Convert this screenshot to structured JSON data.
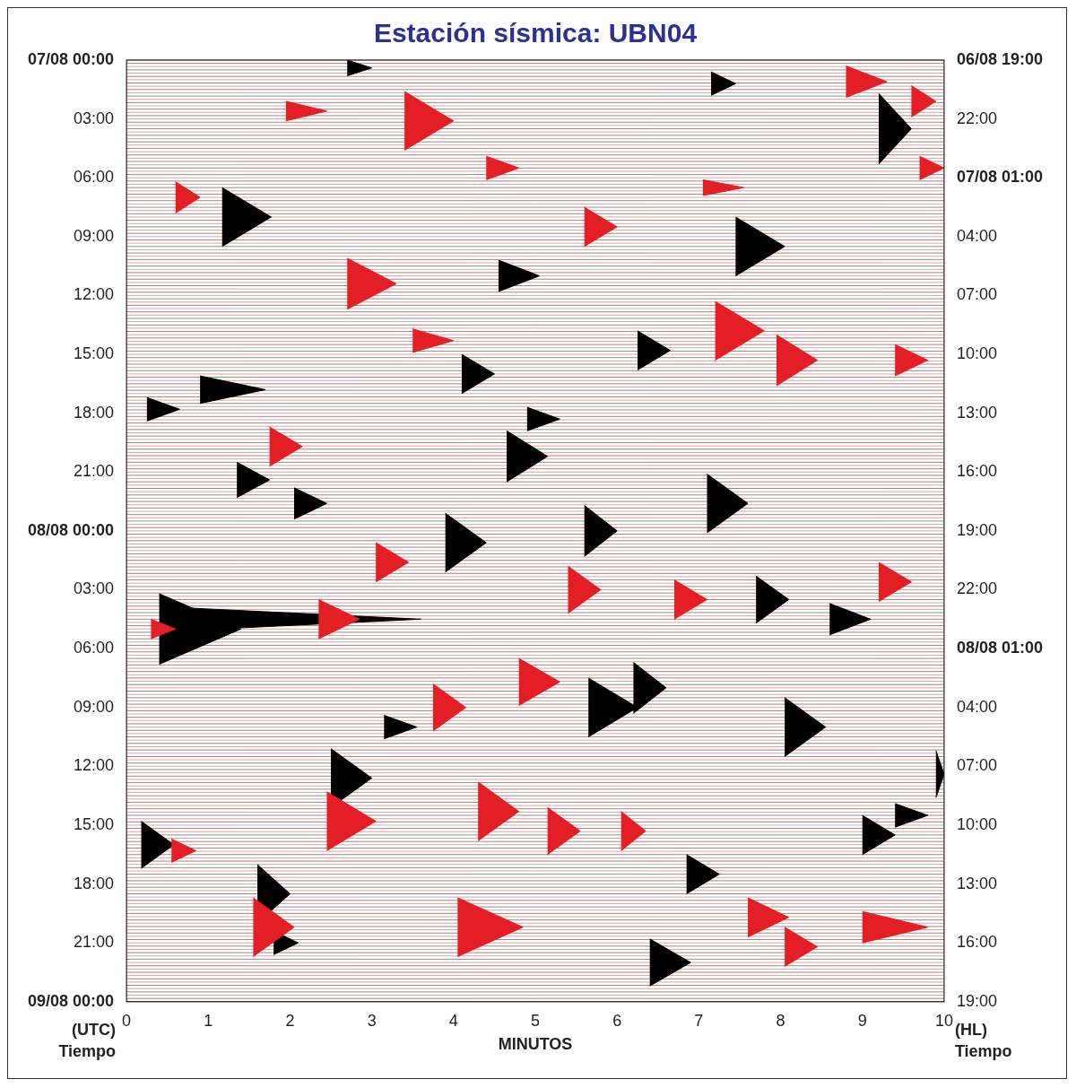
{
  "chart_data": {
    "type": "helicorder",
    "title": "Estación sísmica: UBN04",
    "x_label": "MINUTOS",
    "y_label": [
      "(UTC)",
      "Tiempo"
    ],
    "y2_label": [
      "(HL)",
      "Tiempo"
    ],
    "xlim": [
      0,
      10
    ],
    "xticks": [
      0,
      1,
      2,
      3,
      4,
      5,
      6,
      7,
      8,
      9,
      10
    ],
    "ylim": [
      0,
      48
    ],
    "yticks": [
      {
        "value": 0,
        "label": "07/08 00:00"
      },
      {
        "value": 3,
        "label": "03:00"
      },
      {
        "value": 6,
        "label": "06:00"
      },
      {
        "value": 9,
        "label": "09:00"
      },
      {
        "value": 12,
        "label": "12:00"
      },
      {
        "value": 15,
        "label": "15:00"
      },
      {
        "value": 18,
        "label": "18:00"
      },
      {
        "value": 21,
        "label": "21:00"
      },
      {
        "value": 24,
        "label": "08/08 00:00"
      },
      {
        "value": 27,
        "label": "03:00"
      },
      {
        "value": 30,
        "label": "06:00"
      },
      {
        "value": 33,
        "label": "09:00"
      },
      {
        "value": 36,
        "label": "12:00"
      },
      {
        "value": 39,
        "label": "15:00"
      },
      {
        "value": 42,
        "label": "18:00"
      },
      {
        "value": 45,
        "label": "21:00"
      },
      {
        "value": 48,
        "label": "09/08 00:00"
      }
    ],
    "y2lim": [
      0,
      48
    ],
    "y2ticks": [
      {
        "value": 0,
        "label": "06/08 19:00"
      },
      {
        "value": 3,
        "label": "22:00"
      },
      {
        "value": 6,
        "label": "07/08 01:00"
      },
      {
        "value": 9,
        "label": "04:00"
      },
      {
        "value": 12,
        "label": "07:00"
      },
      {
        "value": 15,
        "label": "10:00"
      },
      {
        "value": 18,
        "label": "13:00"
      },
      {
        "value": 21,
        "label": "16:00"
      },
      {
        "value": 24,
        "label": "19:00"
      },
      {
        "value": 27,
        "label": "22:00"
      },
      {
        "value": 30,
        "label": "08/08 01:00"
      },
      {
        "value": 33,
        "label": "04:00"
      },
      {
        "value": 36,
        "label": "07:00"
      },
      {
        "value": 39,
        "label": "10:00"
      },
      {
        "value": 42,
        "label": "13:00"
      },
      {
        "value": 45,
        "label": "16:00"
      },
      {
        "value": 48,
        "label": "19:00"
      }
    ],
    "grid": false,
    "series": [
      {
        "color": "#e31e24",
        "events": [
          {
            "minute": 3.4,
            "hour": 3.1,
            "amplitude": 1.5,
            "duration": 0.6
          },
          {
            "minute": 2.7,
            "hour": 11.4,
            "amplitude": 1.3,
            "duration": 0.6
          },
          {
            "minute": 0.6,
            "hour": 7.0,
            "amplitude": 0.8,
            "duration": 0.3
          },
          {
            "minute": 1.55,
            "hour": 44.2,
            "amplitude": 1.5,
            "duration": 0.5
          },
          {
            "minute": 2.45,
            "hour": 38.8,
            "amplitude": 1.5,
            "duration": 0.6
          },
          {
            "minute": 3.05,
            "hour": 25.6,
            "amplitude": 1.0,
            "duration": 0.4
          },
          {
            "minute": 2.35,
            "hour": 28.5,
            "amplitude": 1.0,
            "duration": 0.5
          },
          {
            "minute": 3.75,
            "hour": 33.0,
            "amplitude": 1.2,
            "duration": 0.4
          },
          {
            "minute": 4.05,
            "hour": 44.2,
            "amplitude": 1.5,
            "duration": 0.8
          },
          {
            "minute": 4.3,
            "hour": 38.3,
            "amplitude": 1.5,
            "duration": 0.5
          },
          {
            "minute": 4.8,
            "hour": 31.7,
            "amplitude": 1.2,
            "duration": 0.5
          },
          {
            "minute": 5.15,
            "hour": 39.3,
            "amplitude": 1.2,
            "duration": 0.4
          },
          {
            "minute": 5.4,
            "hour": 27.0,
            "amplitude": 1.2,
            "duration": 0.4
          },
          {
            "minute": 6.05,
            "hour": 39.3,
            "amplitude": 1.0,
            "duration": 0.3
          },
          {
            "minute": 6.7,
            "hour": 27.5,
            "amplitude": 1.0,
            "duration": 0.4
          },
          {
            "minute": 7.2,
            "hour": 13.8,
            "amplitude": 1.5,
            "duration": 0.6
          },
          {
            "minute": 7.95,
            "hour": 15.3,
            "amplitude": 1.3,
            "duration": 0.5
          },
          {
            "minute": 7.6,
            "hour": 43.7,
            "amplitude": 1.0,
            "duration": 0.5
          },
          {
            "minute": 8.05,
            "hour": 45.2,
            "amplitude": 1.0,
            "duration": 0.4
          },
          {
            "minute": 9.2,
            "hour": 26.6,
            "amplitude": 1.0,
            "duration": 0.4
          },
          {
            "minute": 9.0,
            "hour": 44.2,
            "amplitude": 0.8,
            "duration": 0.8
          },
          {
            "minute": 8.8,
            "hour": 1.1,
            "amplitude": 0.8,
            "duration": 0.5
          },
          {
            "minute": 9.6,
            "hour": 2.1,
            "amplitude": 0.8,
            "duration": 0.3
          },
          {
            "minute": 9.7,
            "hour": 5.5,
            "amplitude": 0.6,
            "duration": 0.3
          },
          {
            "minute": 9.4,
            "hour": 15.3,
            "amplitude": 0.8,
            "duration": 0.4
          },
          {
            "minute": 5.6,
            "hour": 8.5,
            "amplitude": 1.0,
            "duration": 0.4
          },
          {
            "minute": 1.95,
            "hour": 2.6,
            "amplitude": 0.5,
            "duration": 0.5
          },
          {
            "minute": 0.3,
            "hour": 29.0,
            "amplitude": 0.5,
            "duration": 0.3
          },
          {
            "minute": 0.55,
            "hour": 40.3,
            "amplitude": 0.6,
            "duration": 0.3
          },
          {
            "minute": 1.75,
            "hour": 19.7,
            "amplitude": 1.0,
            "duration": 0.4
          },
          {
            "minute": 3.5,
            "hour": 14.3,
            "amplitude": 0.6,
            "duration": 0.5
          },
          {
            "minute": 4.4,
            "hour": 5.5,
            "amplitude": 0.6,
            "duration": 0.4
          },
          {
            "minute": 7.05,
            "hour": 6.5,
            "amplitude": 0.4,
            "duration": 0.5
          }
        ]
      },
      {
        "color": "#000000",
        "events": [
          {
            "minute": 2.7,
            "hour": 0.4,
            "amplitude": 0.4,
            "duration": 0.3
          },
          {
            "minute": 1.17,
            "hour": 8.0,
            "amplitude": 1.5,
            "duration": 0.6
          },
          {
            "minute": 0.4,
            "hour": 29.0,
            "amplitude": 1.8,
            "duration": 1.0
          },
          {
            "minute": 0.6,
            "hour": 28.5,
            "amplitude": 0.6,
            "duration": 3.0
          },
          {
            "minute": 0.18,
            "hour": 40.0,
            "amplitude": 1.2,
            "duration": 0.4
          },
          {
            "minute": 1.6,
            "hour": 42.5,
            "amplitude": 1.5,
            "duration": 0.4
          },
          {
            "minute": 2.5,
            "hour": 36.6,
            "amplitude": 1.5,
            "duration": 0.5
          },
          {
            "minute": 3.9,
            "hour": 24.6,
            "amplitude": 1.5,
            "duration": 0.5
          },
          {
            "minute": 4.1,
            "hour": 16.0,
            "amplitude": 1.0,
            "duration": 0.4
          },
          {
            "minute": 4.65,
            "hour": 20.2,
            "amplitude": 1.3,
            "duration": 0.5
          },
          {
            "minute": 4.55,
            "hour": 11.0,
            "amplitude": 0.8,
            "duration": 0.5
          },
          {
            "minute": 5.6,
            "hour": 24.0,
            "amplitude": 1.3,
            "duration": 0.4
          },
          {
            "minute": 5.65,
            "hour": 33.0,
            "amplitude": 1.5,
            "duration": 0.6
          },
          {
            "minute": 6.2,
            "hour": 32.0,
            "amplitude": 1.3,
            "duration": 0.4
          },
          {
            "minute": 6.25,
            "hour": 14.8,
            "amplitude": 1.0,
            "duration": 0.4
          },
          {
            "minute": 6.4,
            "hour": 46.0,
            "amplitude": 1.2,
            "duration": 0.5
          },
          {
            "minute": 6.85,
            "hour": 41.5,
            "amplitude": 1.0,
            "duration": 0.4
          },
          {
            "minute": 7.1,
            "hour": 22.6,
            "amplitude": 1.5,
            "duration": 0.5
          },
          {
            "minute": 7.45,
            "hour": 9.5,
            "amplitude": 1.5,
            "duration": 0.6
          },
          {
            "minute": 7.7,
            "hour": 27.5,
            "amplitude": 1.2,
            "duration": 0.4
          },
          {
            "minute": 8.05,
            "hour": 34.0,
            "amplitude": 1.5,
            "duration": 0.5
          },
          {
            "minute": 8.6,
            "hour": 28.5,
            "amplitude": 0.8,
            "duration": 0.5
          },
          {
            "minute": 9.2,
            "hour": 3.5,
            "amplitude": 1.8,
            "duration": 0.4
          },
          {
            "minute": 9.9,
            "hour": 36.4,
            "amplitude": 1.2,
            "duration": 0.1
          },
          {
            "minute": 9.0,
            "hour": 39.5,
            "amplitude": 1.0,
            "duration": 0.4
          },
          {
            "minute": 0.25,
            "hour": 17.8,
            "amplitude": 0.6,
            "duration": 0.4
          },
          {
            "minute": 0.9,
            "hour": 16.8,
            "amplitude": 0.7,
            "duration": 0.8
          },
          {
            "minute": 1.35,
            "hour": 21.4,
            "amplitude": 0.9,
            "duration": 0.4
          },
          {
            "minute": 2.05,
            "hour": 22.6,
            "amplitude": 0.8,
            "duration": 0.4
          },
          {
            "minute": 9.4,
            "hour": 38.5,
            "amplitude": 0.6,
            "duration": 0.4
          },
          {
            "minute": 7.15,
            "hour": 1.2,
            "amplitude": 0.6,
            "duration": 0.3
          },
          {
            "minute": 4.9,
            "hour": 18.3,
            "amplitude": 0.6,
            "duration": 0.4
          },
          {
            "minute": 1.8,
            "hour": 45.0,
            "amplitude": 0.6,
            "duration": 0.3
          },
          {
            "minute": 3.15,
            "hour": 34.0,
            "amplitude": 0.6,
            "duration": 0.4
          }
        ]
      }
    ]
  }
}
